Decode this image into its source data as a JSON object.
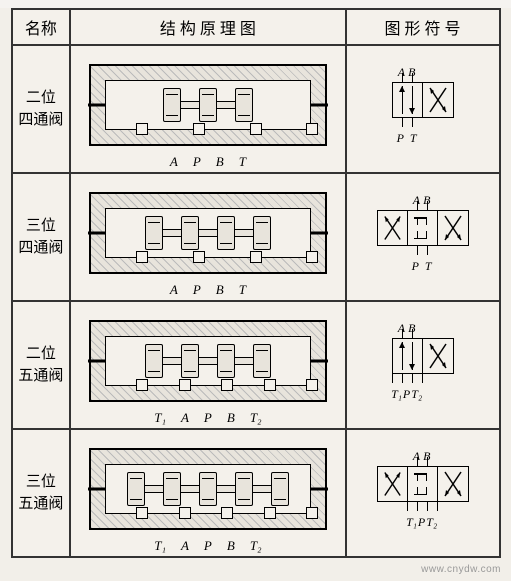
{
  "colors": {
    "border": "#333333",
    "hatch": "#bbbbbb",
    "bg": "#f2efe9",
    "line": "#000000"
  },
  "header": {
    "name_col": "名称",
    "struct_col": "结 构 原 理 图",
    "sym_col": "图 形 符 号"
  },
  "rows": [
    {
      "name_line1": "二位",
      "name_line2": "四通阀",
      "struct_ports": [
        "A",
        "P",
        "B",
        "T"
      ],
      "struct_lands": 3,
      "sym_positions": 2,
      "sym_top": [
        "A",
        "B"
      ],
      "sym_bot": [
        "P",
        "T"
      ],
      "sym_box_width": 60
    },
    {
      "name_line1": "三位",
      "name_line2": "四通阀",
      "struct_ports": [
        "A",
        "P",
        "B",
        "T"
      ],
      "struct_lands": 4,
      "sym_positions": 3,
      "sym_top": [
        "A",
        "B"
      ],
      "sym_bot": [
        "P",
        "T"
      ],
      "sym_box_width": 90
    },
    {
      "name_line1": "二位",
      "name_line2": "五通阀",
      "struct_ports": [
        "T₁",
        "A",
        "P",
        "B",
        "T₂"
      ],
      "struct_lands": 4,
      "sym_positions": 2,
      "sym_top": [
        "A",
        "B"
      ],
      "sym_bot": [
        "T₁",
        "P",
        "T₂"
      ],
      "sym_box_width": 60
    },
    {
      "name_line1": "三位",
      "name_line2": "五通阀",
      "struct_ports": [
        "T₁",
        "A",
        "P",
        "B",
        "T₂"
      ],
      "struct_lands": 5,
      "sym_positions": 3,
      "sym_top": [
        "A",
        "B"
      ],
      "sym_bot": [
        "T₁",
        "P",
        "T₂"
      ],
      "sym_box_width": 90
    }
  ],
  "watermark": "www.cnydw.com"
}
